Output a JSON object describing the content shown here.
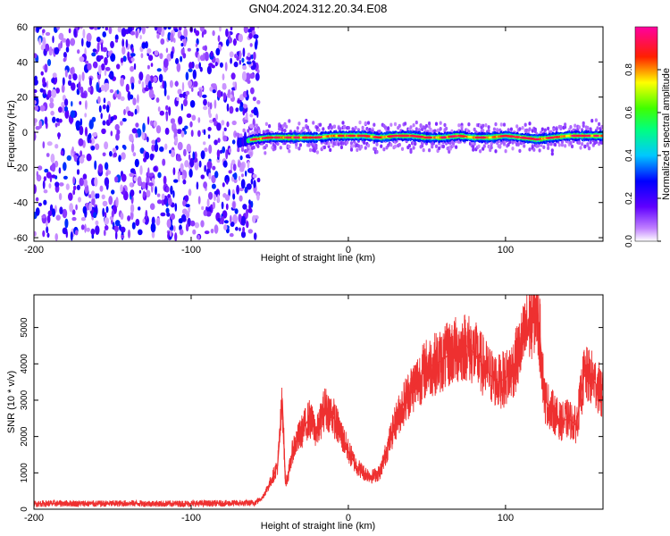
{
  "title": "GN04.2024.312.20.34.E08",
  "chart_data": [
    {
      "type": "heatmap",
      "title": "GN04.2024.312.20.34.E08",
      "xlabel": "Height of straight line (km)",
      "ylabel": "Frequency (Hz)",
      "xlim": [
        -200,
        162
      ],
      "ylim": [
        -62,
        60
      ],
      "xticks": [
        -200,
        -100,
        0,
        100
      ],
      "yticks": [
        60,
        40,
        20,
        0,
        -20,
        -40,
        -60
      ],
      "colorbar": {
        "label": "Normalized spectral amplitude",
        "range": [
          0.0,
          1.0
        ],
        "ticks": [
          0.0,
          0.2,
          0.4,
          0.6,
          0.8
        ],
        "tick_labels": [
          "0.0",
          "0.2",
          "0.4",
          "0.6",
          "0.8"
        ],
        "colors": [
          "#ffffff",
          "#a020f0",
          "#0000ff",
          "#00ffff",
          "#00ff00",
          "#ffff00",
          "#ff0000",
          "#ff00ff"
        ]
      },
      "noise_region": {
        "x": [
          -200,
          -65
        ],
        "y": [
          -60,
          60
        ],
        "amplitude": [
          0.05,
          0.35
        ]
      },
      "signal_band": {
        "x": [
          -70,
          -60,
          -50,
          -40,
          -30,
          -20,
          -10,
          0,
          10,
          20,
          30,
          40,
          50,
          60,
          70,
          80,
          90,
          100,
          110,
          120,
          130,
          140,
          150,
          162
        ],
        "freq": [
          -6,
          -4,
          -3,
          -3,
          -3,
          -3,
          -2,
          -2,
          -2,
          -3,
          -2,
          -2,
          -3,
          -3,
          -2,
          -3,
          -3,
          -2,
          -3,
          -4,
          -3,
          -2,
          -2,
          -2
        ],
        "peak_amplitude": 0.95
      }
    },
    {
      "type": "line",
      "xlabel": "Height of straight line (km)",
      "ylabel": "SNR (10 * v/v)",
      "xlim": [
        -200,
        162
      ],
      "ylim": [
        0,
        5900
      ],
      "xticks": [
        -200,
        -100,
        0,
        100
      ],
      "yticks": [
        0,
        1000,
        2000,
        3000,
        4000,
        5000
      ],
      "color": "#ee3030",
      "x": [
        -200,
        -180,
        -160,
        -140,
        -120,
        -100,
        -80,
        -60,
        -55,
        -50,
        -45,
        -42,
        -40,
        -38,
        -35,
        -30,
        -25,
        -20,
        -15,
        -10,
        -5,
        0,
        5,
        10,
        15,
        20,
        25,
        30,
        35,
        40,
        45,
        50,
        55,
        60,
        65,
        70,
        75,
        80,
        85,
        90,
        95,
        100,
        105,
        110,
        115,
        118,
        120,
        122,
        125,
        130,
        135,
        140,
        145,
        150,
        155,
        160,
        162
      ],
      "y": [
        150,
        160,
        150,
        160,
        150,
        155,
        160,
        170,
        300,
        700,
        1200,
        3000,
        700,
        1000,
        1700,
        2100,
        2500,
        2100,
        2800,
        2600,
        2100,
        1600,
        1200,
        1000,
        900,
        1000,
        1700,
        2400,
        2900,
        3300,
        3600,
        3900,
        4000,
        4100,
        4300,
        4400,
        4500,
        4300,
        4000,
        3700,
        3500,
        3600,
        3900,
        4500,
        5100,
        5400,
        5500,
        4700,
        3000,
        2700,
        2400,
        2500,
        2300,
        3700,
        3600,
        3300,
        3000
      ]
    }
  ]
}
